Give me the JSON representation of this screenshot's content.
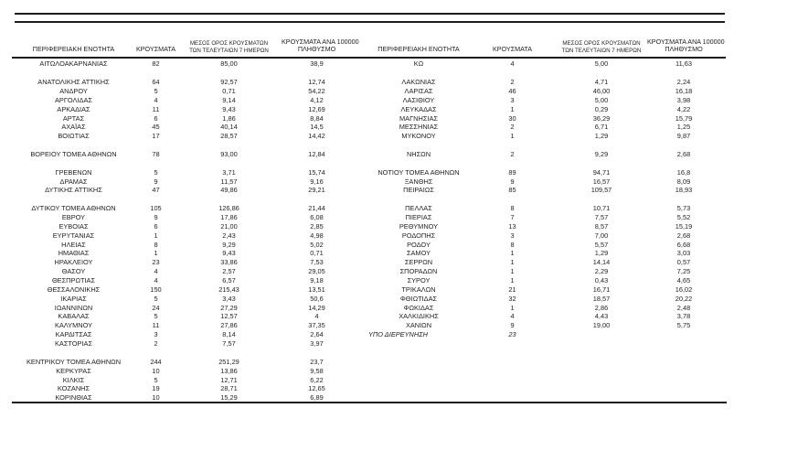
{
  "document": {
    "kind": "regional-covid-cases-table",
    "language": "el"
  },
  "colors": {
    "background": "#ffffff",
    "text": "#1f1f1f",
    "rule": "#1c1c1c"
  },
  "columns": [
    {
      "id": "region",
      "label": "ΠΕΡΙΦΕΡΕΙΑΚΗ ΕΝΟΤΗΤΑ",
      "small": false
    },
    {
      "id": "cases",
      "label": "ΚΡΟΥΣΜΑΤΑ",
      "small": false
    },
    {
      "id": "avg7",
      "label_line1": "ΜΕΣΟΣ ΟΡΟΣ ΚΡΟΥΣΜΑΤΩΝ",
      "label_line2": "ΤΩΝ ΤΕΛΕΥΤΑΙΩΝ 7 ΗΜΕΡΩΝ",
      "small": true
    },
    {
      "id": "per100k",
      "label_line1": "ΚΡΟΥΣΜΑΤΑ ΑΝΑ 100000",
      "label_line2": "ΠΛΗΘΥΣΜΟ",
      "small": false
    }
  ],
  "tables": [
    {
      "side": "left",
      "rows": [
        [
          "ΑΙΤΩΛΟΑΚΑΡΝΑΝΙΑΣ",
          "82",
          "85,00",
          "38,9"
        ],
        null,
        [
          "ΑΝΑΤΟΛΙΚΗΣ ΑΤΤΙΚΗΣ",
          "64",
          "92,57",
          "12,74"
        ],
        [
          "ΑΝΔΡΟΥ",
          "5",
          "0,71",
          "54,22"
        ],
        [
          "ΑΡΓΟΛΙΔΑΣ",
          "4",
          "9,14",
          "4,12"
        ],
        [
          "ΑΡΚΑΔΙΑΣ",
          "11",
          "9,43",
          "12,69"
        ],
        [
          "ΑΡΤΑΣ",
          "6",
          "1,86",
          "8,84"
        ],
        [
          "ΑΧΑΪΑΣ",
          "45",
          "40,14",
          "14,5"
        ],
        [
          "ΒΟΙΩΤΙΑΣ",
          "17",
          "28,57",
          "14,42"
        ],
        null,
        [
          "ΒΟΡΕΙΟΥ ΤΟΜΕΑ ΑΘΗΝΩΝ",
          "78",
          "93,00",
          "12,84"
        ],
        null,
        [
          "ΓΡΕΒΕΝΩΝ",
          "5",
          "3,71",
          "15,74"
        ],
        [
          "ΔΡΑΜΑΣ",
          "9",
          "11,57",
          "9,16"
        ],
        [
          "ΔΥΤΙΚΗΣ ΑΤΤΙΚΗΣ",
          "47",
          "49,86",
          "29,21"
        ],
        null,
        [
          "ΔΥΤΙΚΟΥ ΤΟΜΕΑ ΑΘΗΝΩΝ",
          "105",
          "126,86",
          "21,44"
        ],
        [
          "ΕΒΡΟΥ",
          "9",
          "17,86",
          "6,08"
        ],
        [
          "ΕΥΒΟΙΑΣ",
          "6",
          "21,00",
          "2,85"
        ],
        [
          "ΕΥΡΥΤΑΝΙΑΣ",
          "1",
          "2,43",
          "4,98"
        ],
        [
          "ΗΛΕΙΑΣ",
          "8",
          "9,29",
          "5,02"
        ],
        [
          "ΗΜΑΘΙΑΣ",
          "1",
          "9,43",
          "0,71"
        ],
        [
          "ΗΡΑΚΛΕΙΟΥ",
          "23",
          "33,86",
          "7,53"
        ],
        [
          "ΘΑΣΟΥ",
          "4",
          "2,57",
          "29,05"
        ],
        [
          "ΘΕΣΠΡΩΤΙΑΣ",
          "4",
          "6,57",
          "9,18"
        ],
        [
          "ΘΕΣΣΑΛΟΝΙΚΗΣ",
          "150",
          "215,43",
          "13,51"
        ],
        [
          "ΙΚΑΡΙΑΣ",
          "5",
          "3,43",
          "50,6"
        ],
        [
          "ΙΩΑΝΝΙΝΩΝ",
          "24",
          "27,29",
          "14,29"
        ],
        [
          "ΚΑΒΑΛΑΣ",
          "5",
          "12,57",
          "4"
        ],
        [
          "ΚΑΛΥΜΝΟΥ",
          "11",
          "27,86",
          "37,35"
        ],
        [
          "ΚΑΡΔΙΤΣΑΣ",
          "3",
          "8,14",
          "2,64"
        ],
        [
          "ΚΑΣΤΟΡΙΑΣ",
          "2",
          "7,57",
          "3,97"
        ],
        null,
        [
          "ΚΕΝΤΡΙΚΟΥ ΤΟΜΕΑ ΑΘΗΝΩΝ",
          "244",
          "251,29",
          "23,7"
        ],
        [
          "ΚΕΡΚΥΡΑΣ",
          "10",
          "13,86",
          "9,58"
        ],
        [
          "ΚΙΛΚΙΣ",
          "5",
          "12,71",
          "6,22"
        ],
        [
          "ΚΟΖΑΝΗΣ",
          "19",
          "28,71",
          "12,65"
        ],
        [
          "ΚΟΡΙΝΘΙΑΣ",
          "10",
          "15,29",
          "6,89"
        ]
      ]
    },
    {
      "side": "right",
      "rows": [
        [
          "ΚΩ",
          "4",
          "5,00",
          "11,63"
        ],
        null,
        [
          "ΛΑΚΩΝΙΑΣ",
          "2",
          "4,71",
          "2,24"
        ],
        [
          "ΛΑΡΙΣΑΣ",
          "46",
          "46,00",
          "16,18"
        ],
        [
          "ΛΑΣΙΘΙΟΥ",
          "3",
          "5,00",
          "3,98"
        ],
        [
          "ΛΕΥΚΑΔΑΣ",
          "1",
          "0,29",
          "4,22"
        ],
        [
          "ΜΑΓΝΗΣΙΑΣ",
          "30",
          "36,29",
          "15,79"
        ],
        [
          "ΜΕΣΣΗΝΙΑΣ",
          "2",
          "6,71",
          "1,25"
        ],
        [
          "ΜΥΚΟΝΟΥ",
          "1",
          "1,29",
          "9,87"
        ],
        null,
        [
          "ΝΗΣΩΝ",
          "2",
          "9,29",
          "2,68"
        ],
        null,
        [
          "ΝΟΤΙΟΥ ΤΟΜΕΑ ΑΘΗΝΩΝ",
          "89",
          "94,71",
          "16,8"
        ],
        [
          "ΞΑΝΘΗΣ",
          "9",
          "16,57",
          "8,09"
        ],
        [
          "ΠΕΙΡΑΙΩΣ",
          "85",
          "109,57",
          "18,93"
        ],
        null,
        [
          "ΠΕΛΛΑΣ",
          "8",
          "10,71",
          "5,73"
        ],
        [
          "ΠΙΕΡΙΑΣ",
          "7",
          "7,57",
          "5,52"
        ],
        [
          "ΡΕΘΥΜΝΟΥ",
          "13",
          "8,57",
          "15,19"
        ],
        [
          "ΡΟΔΟΠΗΣ",
          "3",
          "7,00",
          "2,68"
        ],
        [
          "ΡΟΔΟΥ",
          "8",
          "5,57",
          "6,68"
        ],
        [
          "ΣΑΜΟΥ",
          "1",
          "1,29",
          "3,03"
        ],
        [
          "ΣΕΡΡΩΝ",
          "1",
          "14,14",
          "0,57"
        ],
        [
          "ΣΠΟΡΑΔΩΝ",
          "1",
          "2,29",
          "7,25"
        ],
        [
          "ΣΥΡΟΥ",
          "1",
          "0,43",
          "4,65"
        ],
        [
          "ΤΡΙΚΑΛΩΝ",
          "21",
          "16,71",
          "16,02"
        ],
        [
          "ΦΘΙΩΤΙΔΑΣ",
          "32",
          "18,57",
          "20,22"
        ],
        [
          "ΦΩΚΙΔΑΣ",
          "1",
          "2,86",
          "2,48"
        ],
        [
          "ΧΑΛΚΙΔΙΚΗΣ",
          "4",
          "4,43",
          "3,78"
        ],
        [
          "ΧΑΝΙΩΝ",
          "9",
          "19,00",
          "5,75"
        ],
        [
          "ΥΠΟ ΔΙΕΡΕΥΝΗΣΗ",
          "23",
          "",
          "",
          "italic"
        ]
      ]
    }
  ]
}
